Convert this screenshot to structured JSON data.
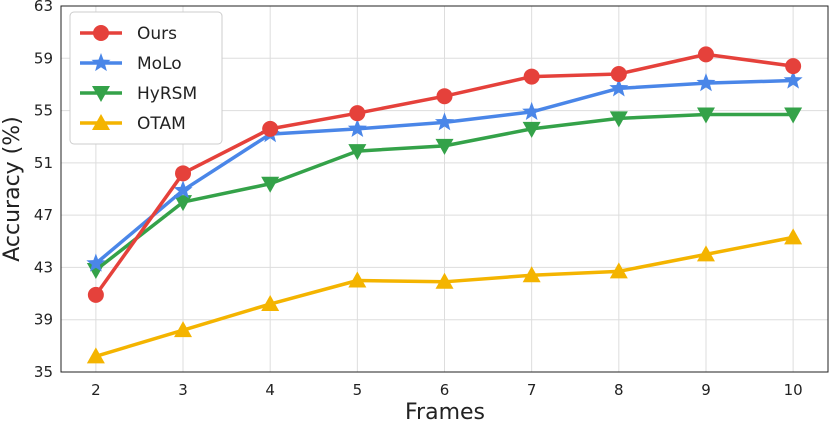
{
  "chart_data": {
    "type": "line",
    "title": "",
    "xlabel": "Frames",
    "ylabel": "Accuracy (%)",
    "x": [
      2,
      3,
      4,
      5,
      6,
      7,
      8,
      9,
      10
    ],
    "xlim": [
      1.6,
      10.4
    ],
    "ylim": [
      35,
      63
    ],
    "yticks": [
      35,
      39,
      43,
      47,
      51,
      55,
      59,
      63
    ],
    "grid": true,
    "legend_position": "top-left",
    "series": [
      {
        "name": "Ours",
        "color": "#e5413b",
        "marker": "circle",
        "values": [
          40.9,
          50.2,
          53.6,
          54.8,
          56.1,
          57.6,
          57.8,
          59.3,
          58.4
        ]
      },
      {
        "name": "MoLo",
        "color": "#4a86e8",
        "marker": "star",
        "values": [
          43.3,
          48.9,
          53.2,
          53.6,
          54.1,
          54.9,
          56.7,
          57.1,
          57.3
        ]
      },
      {
        "name": "HyRSM",
        "color": "#34a249",
        "marker": "triangle-down",
        "values": [
          42.8,
          48.0,
          49.4,
          51.9,
          52.3,
          53.6,
          54.4,
          54.7,
          54.7
        ]
      },
      {
        "name": "OTAM",
        "color": "#f4b400",
        "marker": "triangle-up",
        "values": [
          36.2,
          38.2,
          40.2,
          42.0,
          41.9,
          42.4,
          42.7,
          44.0,
          45.3
        ]
      }
    ]
  }
}
